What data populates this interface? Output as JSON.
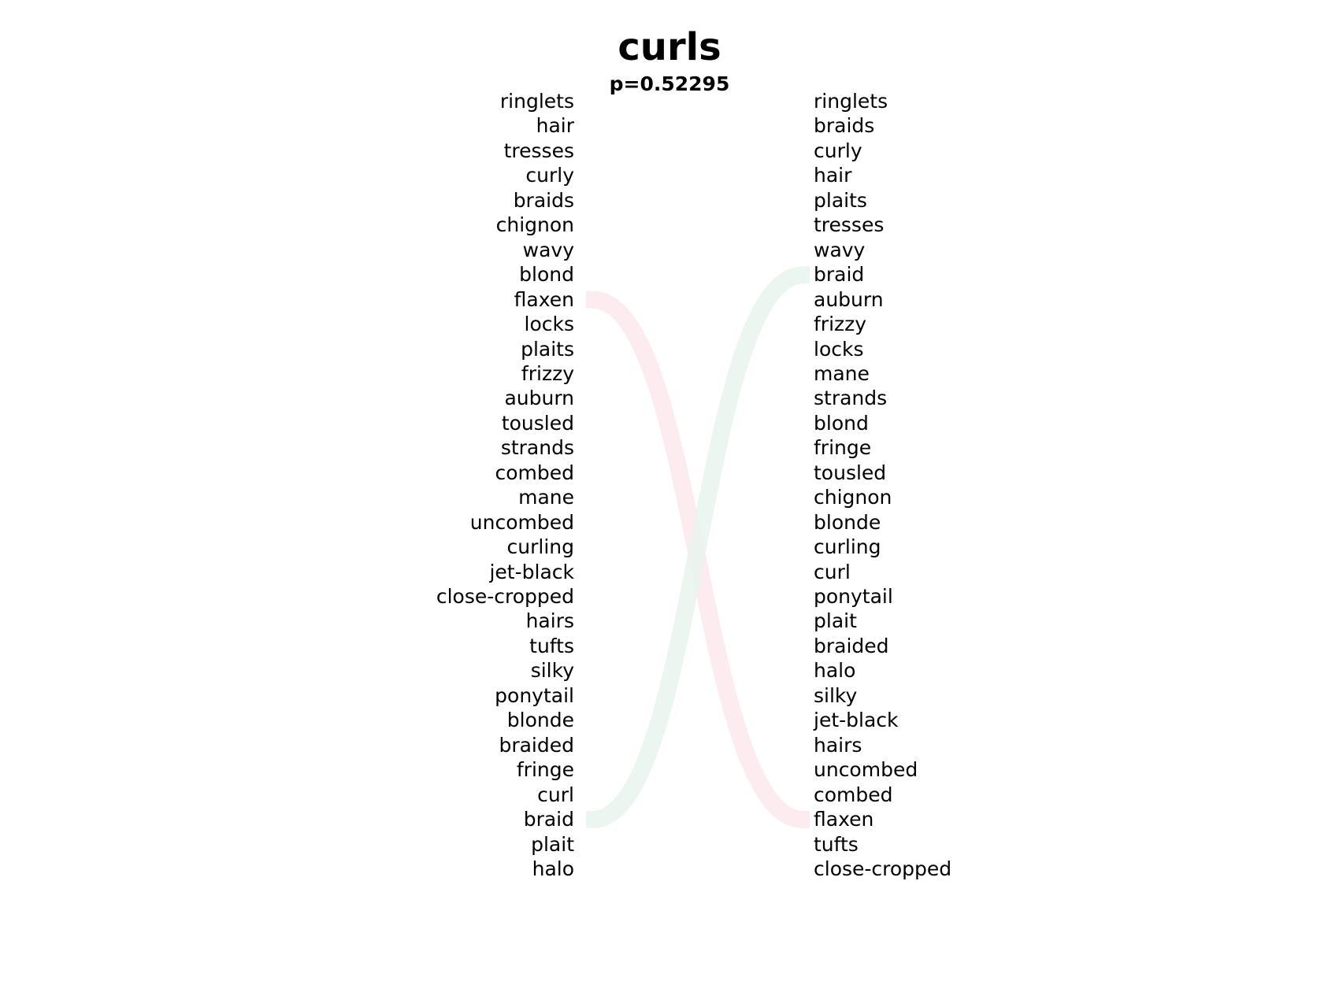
{
  "title": "curls",
  "subtitle": "p=0.52295",
  "left_words": [
    "ringlets",
    "hair",
    "tresses",
    "curly",
    "braids",
    "chignon",
    "wavy",
    "blond",
    "flaxen",
    "locks",
    "plaits",
    "frizzy",
    "auburn",
    "tousled",
    "strands",
    "combed",
    "mane",
    "uncombed",
    "curling",
    "jet-black",
    "close-cropped",
    "hairs",
    "tufts",
    "silky",
    "ponytail",
    "blonde",
    "braided",
    "fringe",
    "curl",
    "braid",
    "plait",
    "halo"
  ],
  "right_words": [
    "ringlets",
    "braids",
    "curly",
    "hair",
    "plaits",
    "tresses",
    "wavy",
    "braid",
    "auburn",
    "frizzy",
    "locks",
    "mane",
    "strands",
    "blond",
    "fringe",
    "tousled",
    "chignon",
    "blonde",
    "curling",
    "curl",
    "ponytail",
    "plait",
    "braided",
    "halo",
    "silky",
    "jet-black",
    "hairs",
    "uncombed",
    "combed",
    "flaxen",
    "tufts",
    "close-cropped"
  ],
  "links": [
    {
      "from": "flaxen",
      "to": "flaxen",
      "color": "#fbe9ec"
    },
    {
      "from": "braid",
      "to": "braid",
      "color": "#e9f5ef"
    }
  ]
}
